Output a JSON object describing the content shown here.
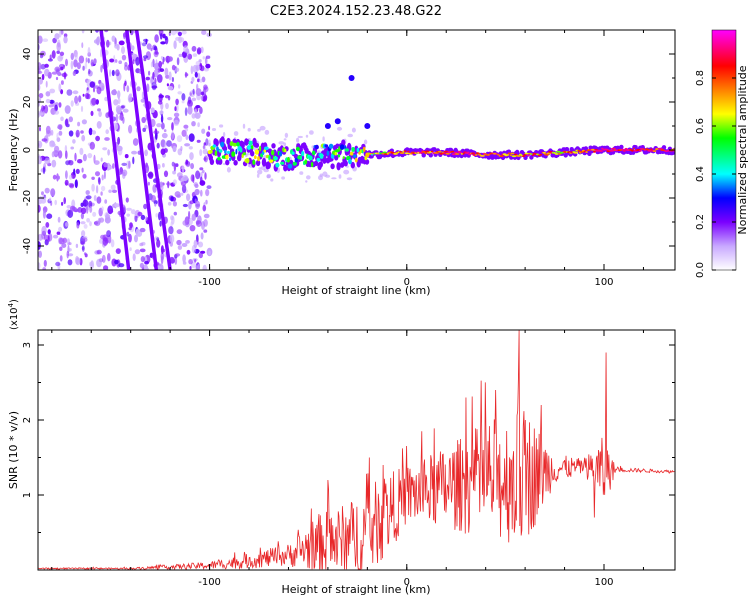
{
  "title": "C2E3.2024.152.23.48.G22",
  "colors": {
    "signal_line": "#e8282a",
    "axis": "#000000",
    "background": "#ffffff"
  },
  "chart_data": [
    {
      "type": "heatmap",
      "xlabel": "Height of straight line (km)",
      "ylabel": "Frequency (Hz)",
      "xlim": [
        -187,
        136
      ],
      "ylim": [
        -50,
        50
      ],
      "x_ticks": [
        -100,
        0,
        100
      ],
      "x_tick_labels": [
        "-100",
        "0",
        "100"
      ],
      "y_ticks": [
        -40,
        -20,
        0,
        20,
        40
      ],
      "y_tick_labels": [
        "-40",
        "-20",
        "0",
        "20",
        "40"
      ],
      "grid": false,
      "colorbar": {
        "label": "Normalized spectral amplitude",
        "range": [
          0,
          1
        ],
        "ticks": [
          0.0,
          0.2,
          0.4,
          0.6,
          0.8
        ],
        "tick_labels": [
          "0.0",
          "0.2",
          "0.4",
          "0.6",
          "0.8"
        ],
        "colormap": [
          "#ffffff",
          "#c8a8ff",
          "#7a00ff",
          "#0000ff",
          "#00ffff",
          "#00ff00",
          "#ffff00",
          "#ff8000",
          "#ff0000",
          "#ff00ff"
        ]
      },
      "features": {
        "noise_region_x": [
          -187,
          -100
        ],
        "streaks": [
          {
            "x_at_top": -155,
            "x_at_bottom": -141
          },
          {
            "x_at_top": -142,
            "x_at_bottom": -127
          },
          {
            "x_at_top": -137,
            "x_at_bottom": -120
          }
        ],
        "carrier_track": [
          {
            "x": -100,
            "freq": 0,
            "amp": 0.5
          },
          {
            "x": -80,
            "freq": -1,
            "amp": 0.55
          },
          {
            "x": -60,
            "freq": -3,
            "amp": 0.5
          },
          {
            "x": -40,
            "freq": -2,
            "amp": 0.45
          },
          {
            "x": -20,
            "freq": -2,
            "amp": 0.6
          },
          {
            "x": 0,
            "freq": -1,
            "amp": 0.8
          },
          {
            "x": 20,
            "freq": -1,
            "amp": 0.85
          },
          {
            "x": 40,
            "freq": -2,
            "amp": 0.85
          },
          {
            "x": 60,
            "freq": -2,
            "amp": 0.8
          },
          {
            "x": 80,
            "freq": -1,
            "amp": 0.75
          },
          {
            "x": 100,
            "freq": 0,
            "amp": 0.95
          },
          {
            "x": 136,
            "freq": 0,
            "amp": 0.9
          }
        ]
      }
    },
    {
      "type": "line",
      "xlabel": "Height of straight line (km)",
      "ylabel": "SNR (10 * v/v)",
      "y_multiplier_label": "(x10",
      "y_multiplier_exponent": "4",
      "y_multiplier_close": ")",
      "xlim": [
        -187,
        136
      ],
      "ylim": [
        0,
        3.2
      ],
      "x_ticks": [
        -100,
        0,
        100
      ],
      "x_tick_labels": [
        "-100",
        "0",
        "100"
      ],
      "y_ticks": [
        1,
        2,
        3
      ],
      "y_tick_labels": [
        "1",
        "2",
        "3"
      ],
      "grid": false,
      "series": [
        {
          "color": "#e8282a",
          "envelope": [
            {
              "x": -187,
              "base": 0.02,
              "spread": 0.01
            },
            {
              "x": -140,
              "base": 0.02,
              "spread": 0.01
            },
            {
              "x": -100,
              "base": 0.06,
              "spread": 0.05
            },
            {
              "x": -80,
              "base": 0.12,
              "spread": 0.1
            },
            {
              "x": -60,
              "base": 0.2,
              "spread": 0.15
            },
            {
              "x": -45,
              "base": 0.35,
              "spread": 0.4
            },
            {
              "x": -30,
              "base": 0.4,
              "spread": 0.5
            },
            {
              "x": -20,
              "base": 0.5,
              "spread": 0.6
            },
            {
              "x": -10,
              "base": 0.75,
              "spread": 0.55
            },
            {
              "x": 0,
              "base": 1.0,
              "spread": 0.4
            },
            {
              "x": 20,
              "base": 1.1,
              "spread": 0.55
            },
            {
              "x": 40,
              "base": 1.2,
              "spread": 0.8
            },
            {
              "x": 60,
              "base": 1.25,
              "spread": 0.95
            },
            {
              "x": 75,
              "base": 1.35,
              "spread": 0.2
            },
            {
              "x": 90,
              "base": 1.38,
              "spread": 0.1
            },
            {
              "x": 100,
              "base": 1.3,
              "spread": 0.5
            },
            {
              "x": 106,
              "base": 1.34,
              "spread": 0.03
            },
            {
              "x": 136,
              "base": 1.31,
              "spread": 0.02
            }
          ],
          "spikes": [
            {
              "x": -40,
              "y": 1.2
            },
            {
              "x": -19,
              "y": 1.5
            },
            {
              "x": -12,
              "y": 1.4
            },
            {
              "x": 30,
              "y": 2.3
            },
            {
              "x": 45,
              "y": 2.4
            },
            {
              "x": 57,
              "y": 3.2
            },
            {
              "x": 60,
              "y": 2.0
            },
            {
              "x": 68,
              "y": 2.2
            },
            {
              "x": 101,
              "y": 2.9
            },
            {
              "x": 95,
              "y": 0.7
            }
          ]
        }
      ]
    }
  ]
}
